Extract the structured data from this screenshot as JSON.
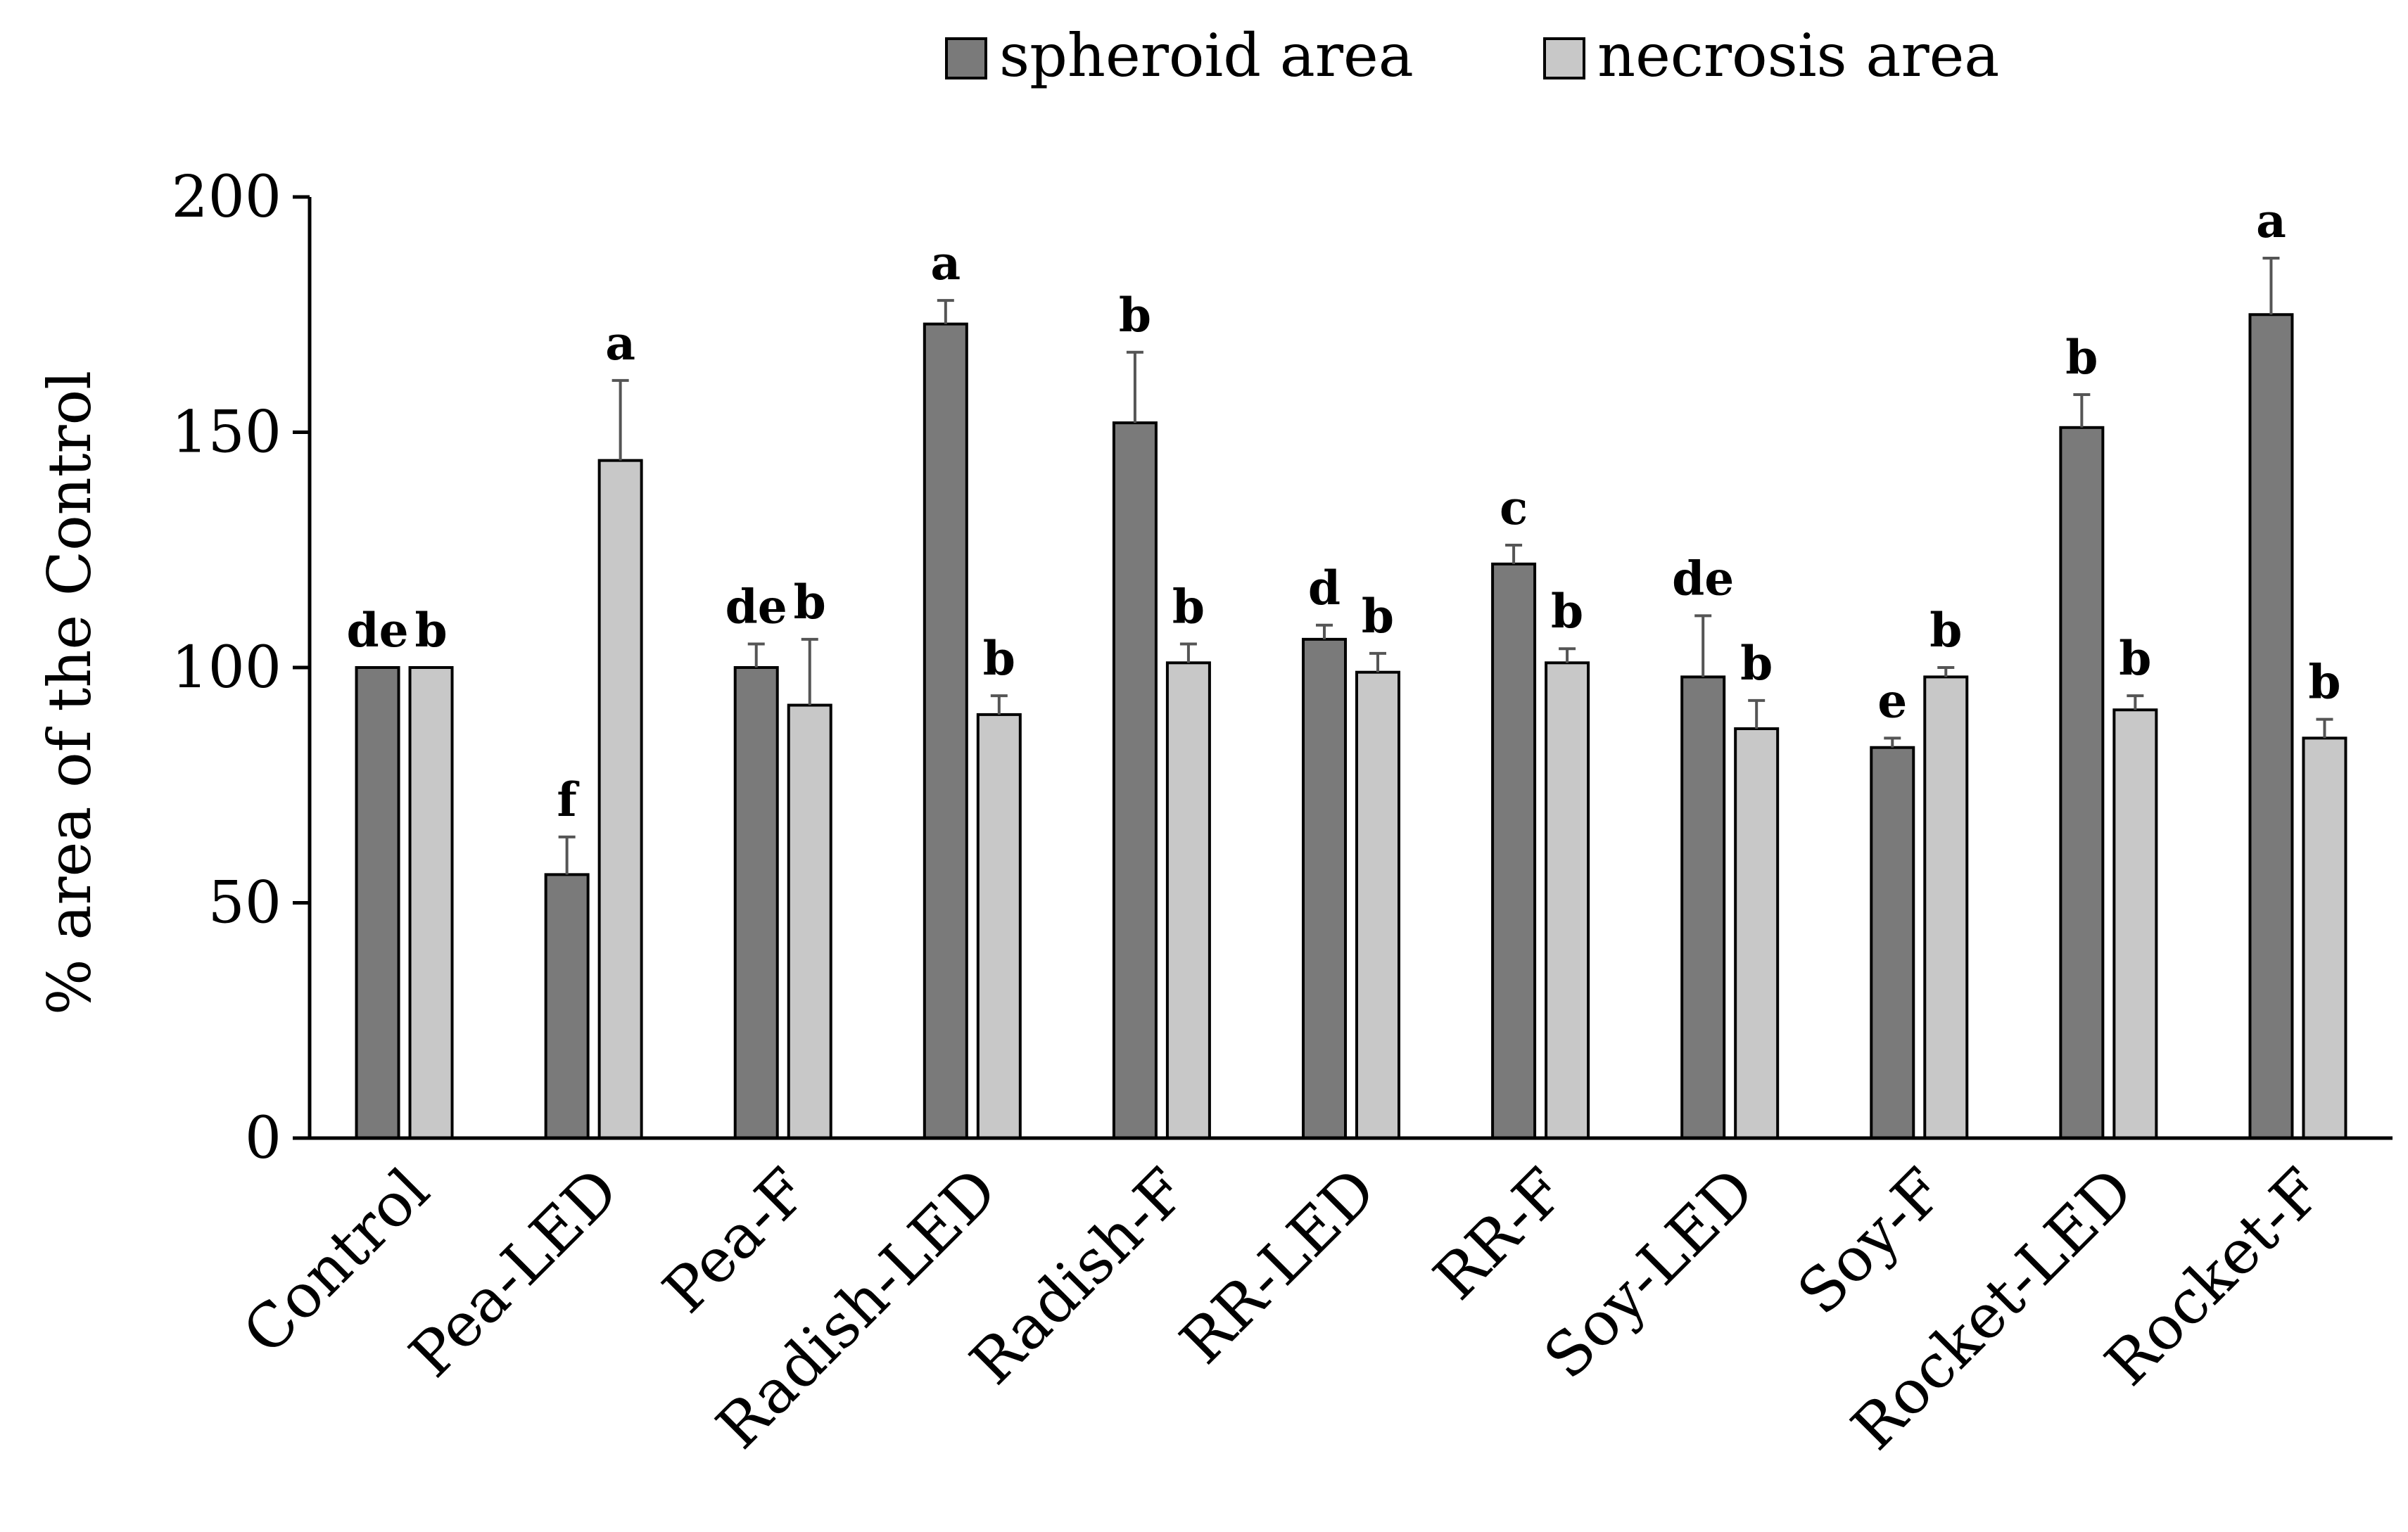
{
  "chart_data": {
    "type": "bar",
    "title": "",
    "xlabel": "",
    "ylabel": "% area of the Control",
    "ylim": [
      0,
      200
    ],
    "yticks": [
      0,
      50,
      100,
      150,
      200
    ],
    "legend_position": "top-right",
    "categories": [
      "Control",
      "Pea-LED",
      "Pea-F",
      "Radish-LED",
      "Radish-F",
      "RR-LED",
      "RR-F",
      "Soy-LED",
      "Soy-F",
      "Rocket-LED",
      "Rocket-F"
    ],
    "series": [
      {
        "name": "spheroid area",
        "color": "#7a7a7a",
        "values": [
          100,
          56,
          100,
          173,
          152,
          106,
          122,
          98,
          83,
          151,
          175
        ],
        "errors": [
          0,
          8,
          5,
          5,
          15,
          3,
          4,
          13,
          2,
          7,
          12
        ],
        "letters": [
          "de",
          "f",
          "de",
          "a",
          "b",
          "d",
          "c",
          "de",
          "e",
          "b",
          "a"
        ]
      },
      {
        "name": "necrosis area",
        "color": "#c8c8c8",
        "values": [
          100,
          144,
          92,
          90,
          101,
          99,
          101,
          87,
          98,
          91,
          85
        ],
        "errors": [
          0,
          17,
          14,
          4,
          4,
          4,
          3,
          6,
          2,
          3,
          4
        ],
        "letters": [
          "b",
          "a",
          "b",
          "b",
          "b",
          "b",
          "b",
          "b",
          "b",
          "b",
          "b"
        ]
      }
    ]
  }
}
